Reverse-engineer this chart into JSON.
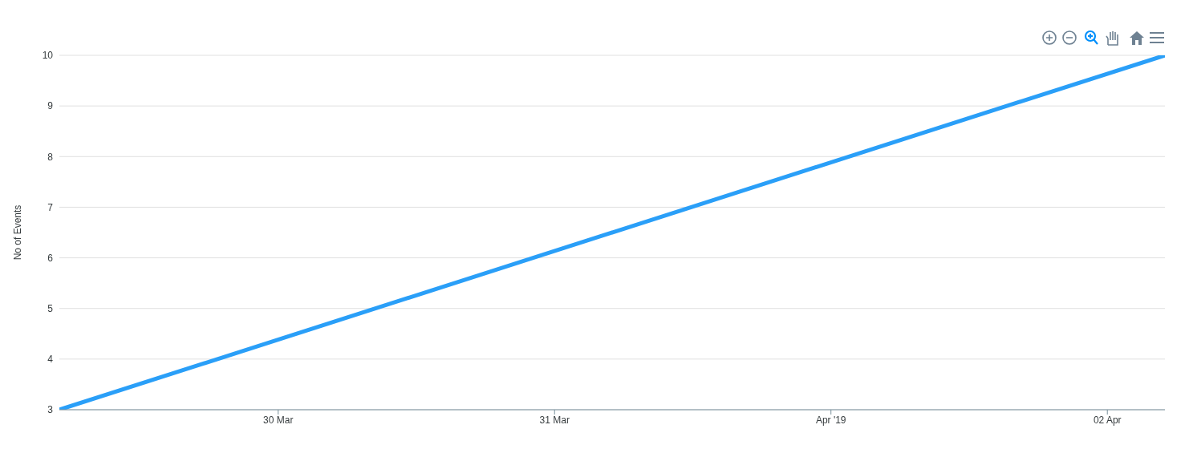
{
  "chart_data": {
    "type": "line",
    "ylabel": "No of Events",
    "x": [
      "2019-03-29T05:00",
      "2019-04-02T05:00"
    ],
    "series": [
      {
        "color": "#2a9ff8",
        "values": [
          3,
          10
        ]
      }
    ],
    "xlim": [
      "2019-03-29T05:00",
      "2019-04-02T05:00"
    ],
    "xticks": [
      {
        "value": "2019-03-30",
        "label": "30 Mar"
      },
      {
        "value": "2019-03-31",
        "label": "31 Mar"
      },
      {
        "value": "2019-04-01",
        "label": "Apr '19"
      },
      {
        "value": "2019-04-02",
        "label": "02 Apr"
      }
    ],
    "ylim": [
      3,
      10
    ],
    "yticks": [
      3,
      4,
      5,
      6,
      7,
      8,
      9,
      10
    ],
    "grid": "y",
    "legend": false,
    "marker": "none",
    "line_style": "solid"
  }
}
